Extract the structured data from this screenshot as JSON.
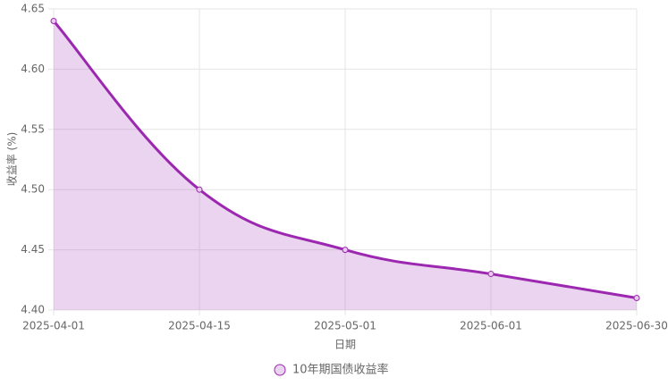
{
  "chart_data": {
    "type": "line",
    "x_label": "日期",
    "y_label": "收益率 (%)",
    "categories": [
      "2025-04-01",
      "2025-04-15",
      "2025-05-01",
      "2025-06-01",
      "2025-06-30"
    ],
    "series": [
      {
        "name": "10年期国债收益率",
        "color": "#9c27b0",
        "values": [
          4.64,
          4.5,
          4.45,
          4.43,
          4.41
        ]
      }
    ],
    "ylim": [
      4.4,
      4.65
    ],
    "yticks": [
      {
        "value": 4.4,
        "label": "4.40"
      },
      4.45,
      {
        "value": 4.5,
        "label": "4.50"
      },
      4.55,
      {
        "value": 4.6,
        "label": "4.60"
      },
      4.65
    ],
    "grid": true,
    "fill": true,
    "legend": "bottom"
  }
}
